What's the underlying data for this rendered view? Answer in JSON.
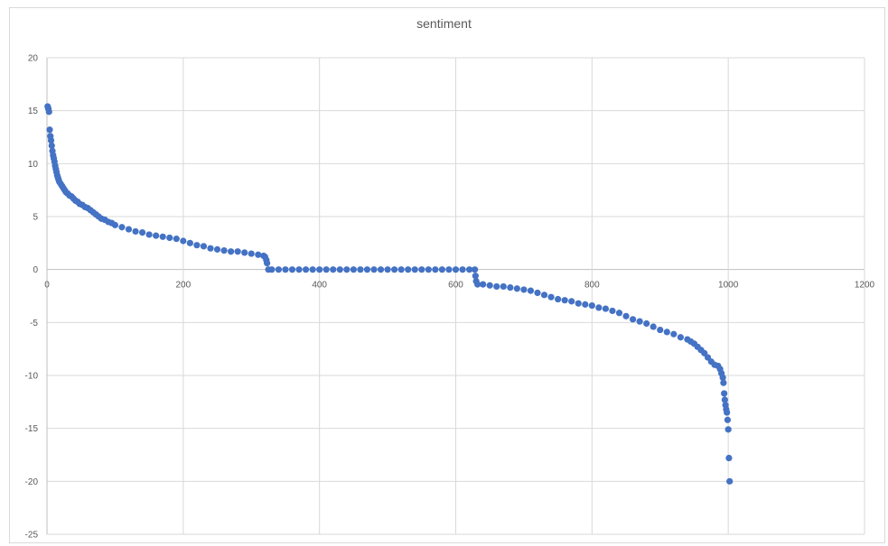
{
  "chart_data": {
    "type": "scatter",
    "title": "sentiment",
    "xlabel": "",
    "ylabel": "",
    "xlim": [
      0,
      1200
    ],
    "ylim": [
      -25,
      20
    ],
    "xticks": [
      0,
      200,
      400,
      600,
      800,
      1000,
      1200
    ],
    "yticks": [
      20,
      15,
      10,
      5,
      0,
      -5,
      -10,
      -15,
      -20,
      -25
    ],
    "grid": true,
    "legend": "none",
    "series": [
      {
        "color": "#4472c4",
        "points": [
          [
            1,
            15.4
          ],
          [
            2,
            15.2
          ],
          [
            3,
            14.9
          ],
          [
            4,
            13.2
          ],
          [
            5,
            12.6
          ],
          [
            6,
            12.2
          ],
          [
            7,
            11.7
          ],
          [
            8,
            11.2
          ],
          [
            9,
            10.8
          ],
          [
            10,
            10.5
          ],
          [
            11,
            10.2
          ],
          [
            12,
            9.8
          ],
          [
            13,
            9.5
          ],
          [
            14,
            9.2
          ],
          [
            15,
            8.9
          ],
          [
            16,
            8.7
          ],
          [
            17,
            8.5
          ],
          [
            18,
            8.3
          ],
          [
            20,
            8.1
          ],
          [
            22,
            7.9
          ],
          [
            24,
            7.7
          ],
          [
            26,
            7.5
          ],
          [
            28,
            7.3
          ],
          [
            30,
            7.2
          ],
          [
            33,
            7.0
          ],
          [
            36,
            6.9
          ],
          [
            39,
            6.7
          ],
          [
            42,
            6.5
          ],
          [
            45,
            6.4
          ],
          [
            48,
            6.2
          ],
          [
            52,
            6.1
          ],
          [
            56,
            5.9
          ],
          [
            60,
            5.8
          ],
          [
            64,
            5.6
          ],
          [
            68,
            5.4
          ],
          [
            72,
            5.2
          ],
          [
            76,
            5.0
          ],
          [
            80,
            4.8
          ],
          [
            85,
            4.7
          ],
          [
            90,
            4.5
          ],
          [
            95,
            4.4
          ],
          [
            100,
            4.2
          ],
          [
            110,
            4.0
          ],
          [
            120,
            3.8
          ],
          [
            130,
            3.6
          ],
          [
            140,
            3.5
          ],
          [
            150,
            3.3
          ],
          [
            160,
            3.2
          ],
          [
            170,
            3.1
          ],
          [
            180,
            3.0
          ],
          [
            190,
            2.9
          ],
          [
            200,
            2.7
          ],
          [
            210,
            2.5
          ],
          [
            220,
            2.3
          ],
          [
            230,
            2.2
          ],
          [
            240,
            2.0
          ],
          [
            250,
            1.9
          ],
          [
            260,
            1.8
          ],
          [
            270,
            1.7
          ],
          [
            280,
            1.7
          ],
          [
            290,
            1.6
          ],
          [
            300,
            1.5
          ],
          [
            310,
            1.4
          ],
          [
            318,
            1.3
          ],
          [
            320,
            1.2
          ],
          [
            322,
            0.9
          ],
          [
            323,
            0.6
          ],
          [
            325,
            0
          ],
          [
            330,
            0
          ],
          [
            340,
            0
          ],
          [
            350,
            0
          ],
          [
            360,
            0
          ],
          [
            370,
            0
          ],
          [
            380,
            0
          ],
          [
            390,
            0
          ],
          [
            400,
            0
          ],
          [
            410,
            0
          ],
          [
            420,
            0
          ],
          [
            430,
            0
          ],
          [
            440,
            0
          ],
          [
            450,
            0
          ],
          [
            460,
            0
          ],
          [
            470,
            0
          ],
          [
            480,
            0
          ],
          [
            490,
            0
          ],
          [
            500,
            0
          ],
          [
            510,
            0
          ],
          [
            520,
            0
          ],
          [
            530,
            0
          ],
          [
            540,
            0
          ],
          [
            550,
            0
          ],
          [
            560,
            0
          ],
          [
            570,
            0
          ],
          [
            580,
            0
          ],
          [
            590,
            0
          ],
          [
            600,
            0
          ],
          [
            610,
            0
          ],
          [
            620,
            0
          ],
          [
            628,
            0
          ],
          [
            629,
            -0.6
          ],
          [
            630,
            -1.1
          ],
          [
            632,
            -1.4
          ],
          [
            640,
            -1.4
          ],
          [
            650,
            -1.5
          ],
          [
            660,
            -1.6
          ],
          [
            670,
            -1.6
          ],
          [
            680,
            -1.7
          ],
          [
            690,
            -1.8
          ],
          [
            700,
            -1.9
          ],
          [
            710,
            -2.0
          ],
          [
            720,
            -2.2
          ],
          [
            730,
            -2.4
          ],
          [
            740,
            -2.6
          ],
          [
            750,
            -2.8
          ],
          [
            760,
            -2.9
          ],
          [
            770,
            -3.0
          ],
          [
            780,
            -3.2
          ],
          [
            790,
            -3.3
          ],
          [
            800,
            -3.4
          ],
          [
            810,
            -3.6
          ],
          [
            820,
            -3.7
          ],
          [
            830,
            -3.9
          ],
          [
            840,
            -4.1
          ],
          [
            850,
            -4.4
          ],
          [
            860,
            -4.7
          ],
          [
            870,
            -4.9
          ],
          [
            880,
            -5.1
          ],
          [
            890,
            -5.4
          ],
          [
            900,
            -5.7
          ],
          [
            910,
            -5.9
          ],
          [
            920,
            -6.1
          ],
          [
            930,
            -6.4
          ],
          [
            940,
            -6.6
          ],
          [
            945,
            -6.8
          ],
          [
            950,
            -7.0
          ],
          [
            955,
            -7.3
          ],
          [
            960,
            -7.6
          ],
          [
            965,
            -7.9
          ],
          [
            970,
            -8.3
          ],
          [
            975,
            -8.7
          ],
          [
            980,
            -9.0
          ],
          [
            985,
            -9.1
          ],
          [
            988,
            -9.4
          ],
          [
            990,
            -9.8
          ],
          [
            992,
            -10.2
          ],
          [
            993,
            -10.7
          ],
          [
            994,
            -11.7
          ],
          [
            995,
            -12.3
          ],
          [
            996,
            -12.8
          ],
          [
            997,
            -13.2
          ],
          [
            998,
            -13.5
          ],
          [
            999,
            -14.2
          ],
          [
            1000,
            -15.1
          ],
          [
            1001,
            -17.8
          ],
          [
            1002,
            -20.0
          ]
        ]
      }
    ]
  }
}
